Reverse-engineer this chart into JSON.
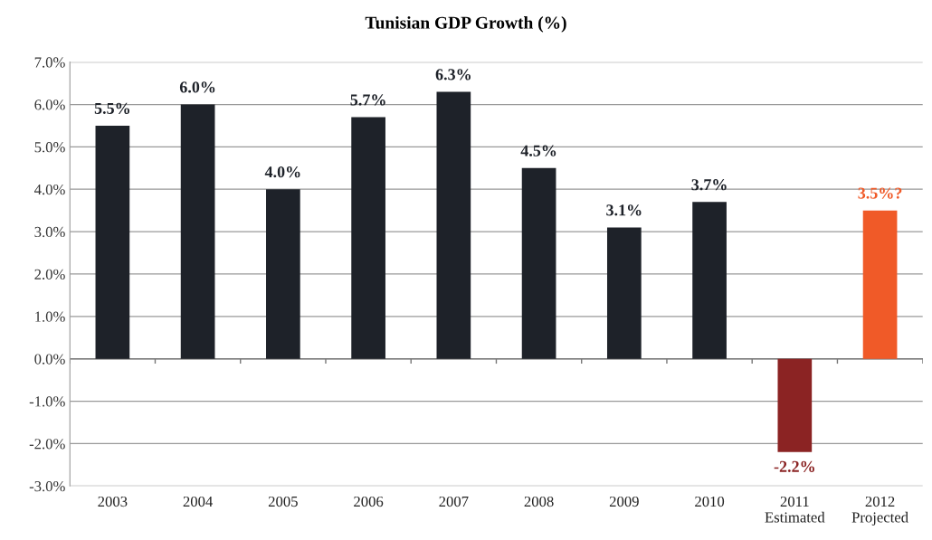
{
  "chart_data": {
    "type": "bar",
    "title": "Tunisian GDP Growth (%)",
    "categories": [
      "2003",
      "2004",
      "2005",
      "2006",
      "2007",
      "2008",
      "2009",
      "2010",
      "2011\nEstimated",
      "2012\nProjected"
    ],
    "values": [
      5.5,
      6.0,
      4.0,
      5.7,
      6.3,
      4.5,
      3.1,
      3.7,
      -2.2,
      3.5
    ],
    "value_labels": [
      "5.5%",
      "6.0%",
      "4.0%",
      "5.7%",
      "6.3%",
      "4.5%",
      "3.1%",
      "3.7%",
      "-2.2%",
      "3.5%?"
    ],
    "colors": [
      "#1e2229",
      "#1e2229",
      "#1e2229",
      "#1e2229",
      "#1e2229",
      "#1e2229",
      "#1e2229",
      "#1e2229",
      "#8b2323",
      "#f05a28"
    ],
    "ylim": [
      -3.0,
      7.0
    ],
    "yticks": [
      {
        "value": -3.0,
        "label": "-3.0%"
      },
      {
        "value": -2.0,
        "label": "-2.0%"
      },
      {
        "value": -1.0,
        "label": "-1.0%"
      },
      {
        "value": 0.0,
        "label": "0.0%"
      },
      {
        "value": 1.0,
        "label": "1.0%"
      },
      {
        "value": 2.0,
        "label": "2.0%"
      },
      {
        "value": 3.0,
        "label": "3.0%"
      },
      {
        "value": 4.0,
        "label": "4.0%"
      },
      {
        "value": 5.0,
        "label": "5.0%"
      },
      {
        "value": 6.0,
        "label": "6.0%"
      },
      {
        "value": 7.0,
        "label": "7.0%"
      }
    ],
    "grid": "y",
    "legend": false
  }
}
